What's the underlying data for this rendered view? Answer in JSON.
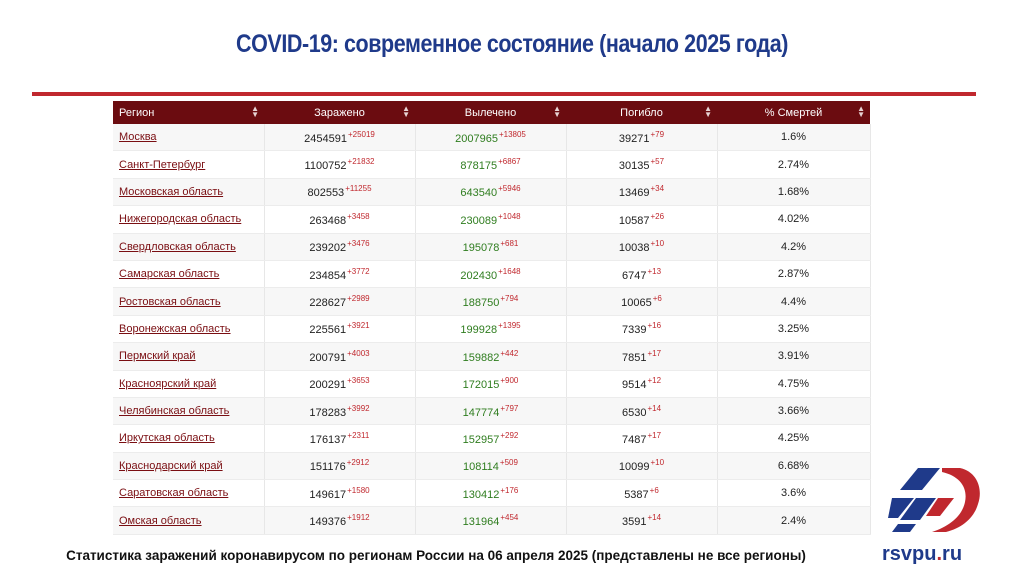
{
  "title": "COVID-19: современное состояние (начало 2025 года)",
  "table": {
    "headers": [
      "Регион",
      "Заражено",
      "Вылечено",
      "Погибло",
      "% Смертей"
    ],
    "rows": [
      {
        "region": "Москва",
        "infected": "2454591",
        "infected_delta": "+25019",
        "recovered": "2007965",
        "recovered_delta": "+13805",
        "deaths": "39271",
        "deaths_delta": "+79",
        "pct": "1.6%"
      },
      {
        "region": "Санкт-Петербург",
        "infected": "1100752",
        "infected_delta": "+21832",
        "recovered": "878175",
        "recovered_delta": "+6867",
        "deaths": "30135",
        "deaths_delta": "+57",
        "pct": "2.74%"
      },
      {
        "region": "Московская область",
        "infected": "802553",
        "infected_delta": "+11255",
        "recovered": "643540",
        "recovered_delta": "+5946",
        "deaths": "13469",
        "deaths_delta": "+34",
        "pct": "1.68%"
      },
      {
        "region": "Нижегородская область",
        "infected": "263468",
        "infected_delta": "+3458",
        "recovered": "230089",
        "recovered_delta": "+1048",
        "deaths": "10587",
        "deaths_delta": "+26",
        "pct": "4.02%"
      },
      {
        "region": "Свердловская область",
        "infected": "239202",
        "infected_delta": "+3476",
        "recovered": "195078",
        "recovered_delta": "+681",
        "deaths": "10038",
        "deaths_delta": "+10",
        "pct": "4.2%"
      },
      {
        "region": "Самарская область",
        "infected": "234854",
        "infected_delta": "+3772",
        "recovered": "202430",
        "recovered_delta": "+1648",
        "deaths": "6747",
        "deaths_delta": "+13",
        "pct": "2.87%"
      },
      {
        "region": "Ростовская область",
        "infected": "228627",
        "infected_delta": "+2989",
        "recovered": "188750",
        "recovered_delta": "+794",
        "deaths": "10065",
        "deaths_delta": "+6",
        "pct": "4.4%"
      },
      {
        "region": "Воронежская область",
        "infected": "225561",
        "infected_delta": "+3921",
        "recovered": "199928",
        "recovered_delta": "+1395",
        "deaths": "7339",
        "deaths_delta": "+16",
        "pct": "3.25%"
      },
      {
        "region": "Пермский край",
        "infected": "200791",
        "infected_delta": "+4003",
        "recovered": "159882",
        "recovered_delta": "+442",
        "deaths": "7851",
        "deaths_delta": "+17",
        "pct": "3.91%"
      },
      {
        "region": "Красноярский край",
        "infected": "200291",
        "infected_delta": "+3653",
        "recovered": "172015",
        "recovered_delta": "+900",
        "deaths": "9514",
        "deaths_delta": "+12",
        "pct": "4.75%"
      },
      {
        "region": "Челябинская область",
        "infected": "178283",
        "infected_delta": "+3992",
        "recovered": "147774",
        "recovered_delta": "+797",
        "deaths": "6530",
        "deaths_delta": "+14",
        "pct": "3.66%"
      },
      {
        "region": "Иркутская область",
        "infected": "176137",
        "infected_delta": "+2311",
        "recovered": "152957",
        "recovered_delta": "+292",
        "deaths": "7487",
        "deaths_delta": "+17",
        "pct": "4.25%"
      },
      {
        "region": "Краснодарский край",
        "infected": "151176",
        "infected_delta": "+2912",
        "recovered": "108114",
        "recovered_delta": "+509",
        "deaths": "10099",
        "deaths_delta": "+10",
        "pct": "6.68%"
      },
      {
        "region": "Саратовская область",
        "infected": "149617",
        "infected_delta": "+1580",
        "recovered": "130412",
        "recovered_delta": "+176",
        "deaths": "5387",
        "deaths_delta": "+6",
        "pct": "3.6%"
      },
      {
        "region": "Омская область",
        "infected": "149376",
        "infected_delta": "+1912",
        "recovered": "131964",
        "recovered_delta": "+454",
        "deaths": "3591",
        "deaths_delta": "+14",
        "pct": "2.4%"
      }
    ]
  },
  "caption": "Статистика заражений коронавирусом по регионам России на 06 апреля 2025 (представлены не все регионы)",
  "brand": {
    "prefix": "rsvpu",
    "dot": ".",
    "suffix": "ru"
  },
  "colors": {
    "title": "#1f3a8a",
    "accent_red": "#c0282e",
    "header_bg": "#6b0c10",
    "recovered_green": "#2f7d1f"
  },
  "icons": {
    "sort": "sort-arrows-icon",
    "logo": "rsvpu-logo-icon"
  }
}
